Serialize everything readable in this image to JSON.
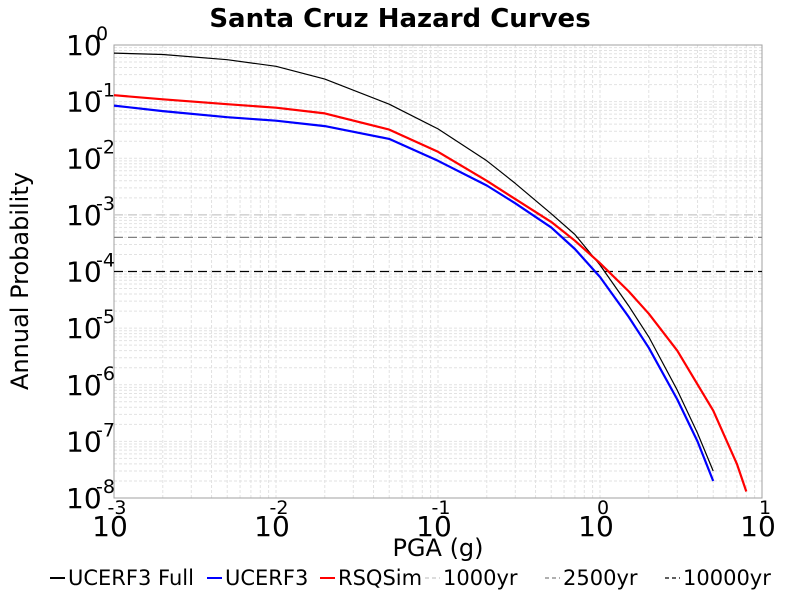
{
  "chart_data": {
    "type": "line",
    "title": "Santa Cruz Hazard Curves",
    "xlabel": "PGA (g)",
    "ylabel": "Annual Probability",
    "xscale": "log",
    "yscale": "log",
    "xlim": [
      0.001,
      10
    ],
    "ylim": [
      1e-08,
      1
    ],
    "x_ticks": [
      {
        "base": "10",
        "exp": "-3"
      },
      {
        "base": "10",
        "exp": "-2"
      },
      {
        "base": "10",
        "exp": "-1"
      },
      {
        "base": "10",
        "exp": "0"
      },
      {
        "base": "10",
        "exp": "1"
      }
    ],
    "y_ticks": [
      {
        "base": "10",
        "exp": "0"
      },
      {
        "base": "10",
        "exp": "-1"
      },
      {
        "base": "10",
        "exp": "-2"
      },
      {
        "base": "10",
        "exp": "-3"
      },
      {
        "base": "10",
        "exp": "-4"
      },
      {
        "base": "10",
        "exp": "-5"
      },
      {
        "base": "10",
        "exp": "-6"
      },
      {
        "base": "10",
        "exp": "-7"
      },
      {
        "base": "10",
        "exp": "-8"
      }
    ],
    "grid": true,
    "legend_position": "bottom",
    "series": [
      {
        "name": "UCERF3 Full",
        "color": "#000000",
        "style": "solid",
        "x": [
          0.001,
          0.002,
          0.005,
          0.01,
          0.02,
          0.05,
          0.1,
          0.2,
          0.3,
          0.5,
          0.7,
          1.0,
          1.5,
          2.0,
          3.0,
          4.0,
          5.0
        ],
        "y": [
          0.72,
          0.68,
          0.55,
          0.42,
          0.25,
          0.09,
          0.033,
          0.009,
          0.0036,
          0.00105,
          0.00045,
          0.00013,
          2.5e-05,
          7e-06,
          8e-07,
          1.4e-07,
          3e-08
        ]
      },
      {
        "name": "UCERF3",
        "color": "#0000ff",
        "style": "solid",
        "x": [
          0.001,
          0.002,
          0.005,
          0.01,
          0.02,
          0.05,
          0.1,
          0.2,
          0.3,
          0.5,
          0.7,
          1.0,
          1.5,
          2.0,
          3.0,
          4.0,
          5.0
        ],
        "y": [
          0.085,
          0.068,
          0.053,
          0.046,
          0.037,
          0.022,
          0.009,
          0.0033,
          0.0016,
          0.0006,
          0.00025,
          8e-05,
          1.6e-05,
          4.5e-06,
          5.5e-07,
          1e-07,
          2e-08
        ]
      },
      {
        "name": "RSQSim",
        "color": "#ff0000",
        "style": "solid",
        "x": [
          0.001,
          0.002,
          0.005,
          0.01,
          0.02,
          0.05,
          0.1,
          0.2,
          0.3,
          0.5,
          0.7,
          1.0,
          1.5,
          2.0,
          3.0,
          5.0,
          7.0,
          8.0
        ],
        "y": [
          0.13,
          0.11,
          0.09,
          0.078,
          0.062,
          0.032,
          0.013,
          0.004,
          0.0019,
          0.00075,
          0.00035,
          0.00014,
          4.5e-05,
          1.8e-05,
          4e-06,
          3.5e-07,
          4e-08,
          1.3e-08
        ]
      },
      {
        "name": "1000yr",
        "color": "#c8c8c8",
        "style": "dashed",
        "x": [
          0.001,
          10
        ],
        "y": [
          0.001,
          0.001
        ]
      },
      {
        "name": "2500yr",
        "color": "#808080",
        "style": "dashed",
        "x": [
          0.001,
          10
        ],
        "y": [
          0.0004,
          0.0004
        ]
      },
      {
        "name": "10000yr",
        "color": "#000000",
        "style": "dashed",
        "x": [
          0.001,
          10
        ],
        "y": [
          0.0001,
          0.0001
        ]
      }
    ]
  }
}
